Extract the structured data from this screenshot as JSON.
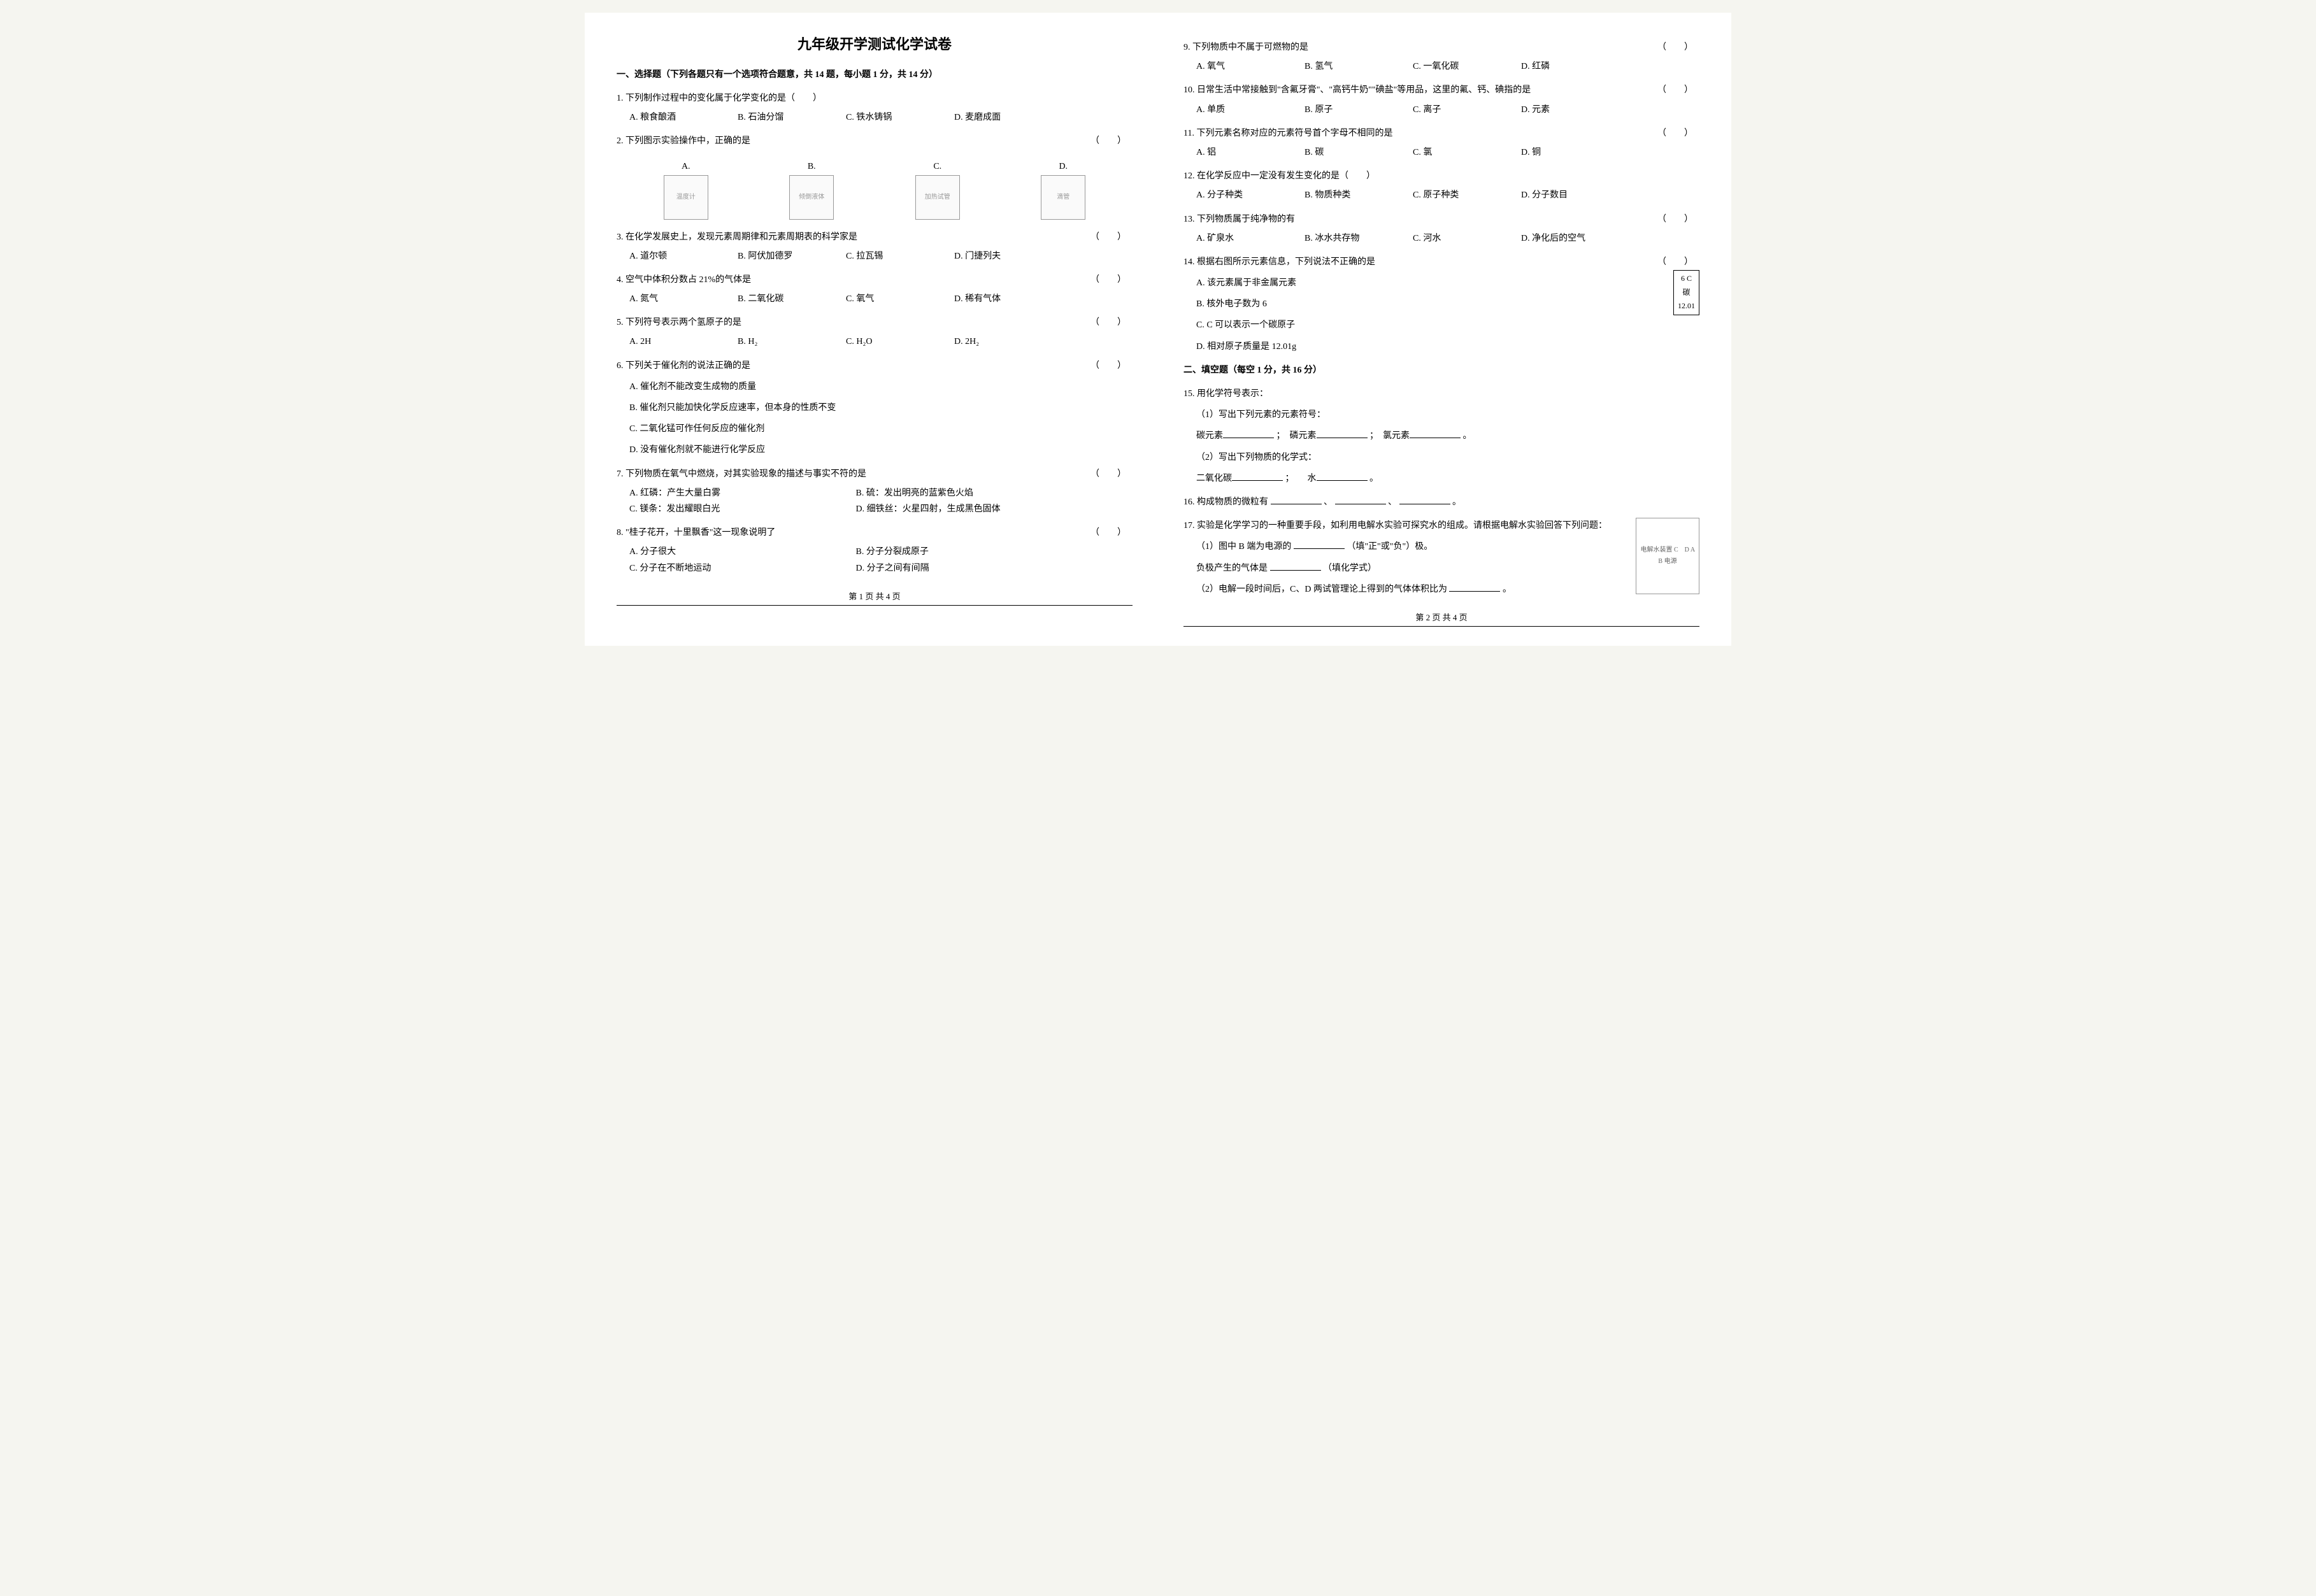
{
  "title": "九年级开学测试化学试卷",
  "section1_header": "一、选择题（下列各题只有一个选项符合题意，共 14 题，每小题 1 分，共 14 分）",
  "q1": {
    "text": "1. 下列制作过程中的变化属于化学变化的是（　　）",
    "opts": [
      "A. 粮食酿酒",
      "B. 石油分馏",
      "C. 铁水铸锅",
      "D. 麦磨成面"
    ]
  },
  "q2": {
    "text": "2. 下列图示实验操作中，正确的是",
    "paren": "（　　）",
    "labels": [
      "A.",
      "B.",
      "C.",
      "D."
    ],
    "alts": [
      "温度计",
      "倾倒液体",
      "加热试管",
      "滴管"
    ]
  },
  "q3": {
    "text": "3. 在化学发展史上，发现元素周期律和元素周期表的科学家是",
    "paren": "（　　）",
    "opts": [
      "A. 道尔顿",
      "B. 阿伏加德罗",
      "C. 拉瓦锡",
      "D. 门捷列夫"
    ]
  },
  "q4": {
    "text": "4. 空气中体积分数占 21%的气体是",
    "paren": "（　　）",
    "opts": [
      "A. 氮气",
      "B. 二氧化碳",
      "C. 氧气",
      "D. 稀有气体"
    ]
  },
  "q5": {
    "text": "5. 下列符号表示两个氢原子的是",
    "paren": "（　　）",
    "opts": [
      "A. 2H",
      "B. H₂",
      "C. H₂O",
      "D. 2H₂"
    ]
  },
  "q6": {
    "text": "6. 下列关于催化剂的说法正确的是",
    "paren": "（　　）",
    "opts": [
      "A. 催化剂不能改变生成物的质量",
      "B. 催化剂只能加快化学反应速率，但本身的性质不变",
      "C. 二氧化锰可作任何反应的催化剂",
      "D. 没有催化剂就不能进行化学反应"
    ]
  },
  "q7": {
    "text": "7. 下列物质在氧气中燃烧，对其实验现象的描述与事实不符的是",
    "paren": "（　　）",
    "opts": [
      "A. 红磷：产生大量白雾",
      "B. 硫：发出明亮的蓝紫色火焰",
      "C. 镁条：发出耀眼白光",
      "D. 细铁丝：火星四射，生成黑色固体"
    ]
  },
  "q8": {
    "text": "8. \"桂子花开，十里飘香\"这一现象说明了",
    "paren": "（　　）",
    "opts": [
      "A. 分子很大",
      "B. 分子分裂成原子",
      "C. 分子在不断地运动",
      "D. 分子之间有间隔"
    ]
  },
  "q9": {
    "text": "9. 下列物质中不属于可燃物的是",
    "paren": "（　　）",
    "opts": [
      "A. 氧气",
      "B. 氢气",
      "C. 一氧化碳",
      "D. 红磷"
    ]
  },
  "q10": {
    "text": "10. 日常生活中常接触到\"含氟牙膏\"、\"高钙牛奶\"\"碘盐\"等用品，这里的氟、钙、碘指的是",
    "paren": "（　　）",
    "opts": [
      "A. 单质",
      "B. 原子",
      "C. 离子",
      "D. 元素"
    ]
  },
  "q11": {
    "text": "11. 下列元素名称对应的元素符号首个字母不相同的是",
    "paren": "（　　）",
    "opts": [
      "A. 铝",
      "B. 碳",
      "C. 氯",
      "D. 铜"
    ]
  },
  "q12": {
    "text": "12. 在化学反应中一定没有发生变化的是（　　）",
    "opts": [
      "A. 分子种类",
      "B. 物质种类",
      "C. 原子种类",
      "D. 分子数目"
    ]
  },
  "q13": {
    "text": "13. 下列物质属于纯净物的有",
    "paren": "（　　）",
    "opts": [
      "A. 矿泉水",
      "B. 冰水共存物",
      "C. 河水",
      "D. 净化后的空气"
    ]
  },
  "q14": {
    "text": "14. 根据右图所示元素信息，下列说法不正确的是",
    "paren": "（　　）",
    "opts": [
      "A. 该元素属于非金属元素",
      "B. 核外电子数为 6",
      "C. C 可以表示一个碳原子",
      "D. 相对原子质量是 12.01g"
    ],
    "element": {
      "num": "6",
      "sym": "C",
      "name": "碳",
      "mass": "12.01"
    }
  },
  "section2_header": "二、填空题（每空 1 分，共 16 分）",
  "q15": {
    "text": "15. 用化学符号表示：",
    "sub1": "（1）写出下列元素的元素符号：",
    "line1_labels": [
      "碳元素",
      "；　磷元素",
      "；　氯元素",
      "。"
    ],
    "sub2": "（2）写出下列物质的化学式：",
    "line2_labels": [
      "二氧化碳",
      "；　　水",
      "。"
    ]
  },
  "q16": {
    "text": "16. 构成物质的微粒有",
    "seps": [
      "、",
      "、",
      "。"
    ]
  },
  "q17": {
    "text": "17. 实验是化学学习的一种重要手段，如利用电解水实验可探究水的组成。请根据电解水实验回答下列问题：",
    "sub1_a": "（1）图中 B 端为电源的",
    "sub1_b": "（填\"正\"或\"负\"）极。",
    "sub1_c": "负极产生的气体是",
    "sub1_d": "（填化学式）",
    "sub2_a": "（2）电解一段时间后，C、D 两试管理论上得到的气体体积比为",
    "sub2_b": "。",
    "diagram_alt": "电解水装置\nC　D\nA　B\n电源"
  },
  "footer_left": "第 1 页 共 4 页",
  "footer_right": "第 2 页 共 4 页"
}
